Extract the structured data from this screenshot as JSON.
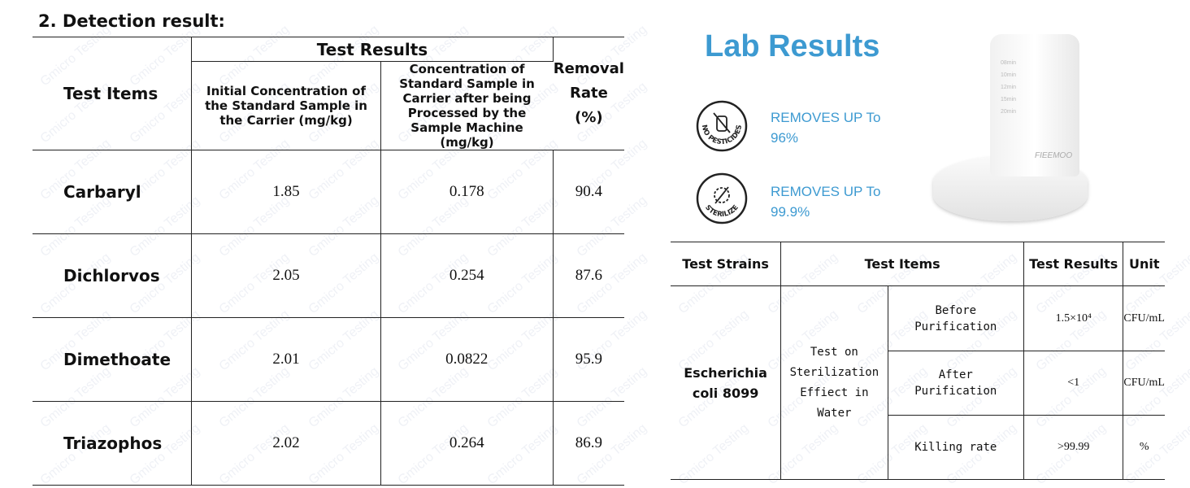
{
  "left": {
    "title": "2. Detection result:",
    "header": {
      "test_items": "Test Items",
      "test_results": "Test Results",
      "initial": "Initial Concentration of the Standard Sample in the Carrier (mg/kg)",
      "processed": "Concentration of Standard Sample in Carrier after being Processed by the Sample Machine (mg/kg)",
      "removal": "Removal Rate (%)"
    },
    "rows": [
      {
        "item": "Carbaryl",
        "initial": "1.85",
        "processed": "0.178",
        "removal": "90.4"
      },
      {
        "item": "Dichlorvos",
        "initial": "2.05",
        "processed": "0.254",
        "removal": "87.6"
      },
      {
        "item": "Dimethoate",
        "initial": "2.01",
        "processed": "0.0822",
        "removal": "95.9"
      },
      {
        "item": "Triazophos",
        "initial": "2.02",
        "processed": "0.264",
        "removal": "86.9"
      }
    ]
  },
  "watermark": "Gmicro Testing",
  "lab": {
    "title": "Lab Results",
    "claims": [
      {
        "badge": "NO PESTICIDES",
        "line1": "REMOVES UP To",
        "value": "96%"
      },
      {
        "badge": "STERILIZE",
        "line1": "REMOVES UP To",
        "value": "99.9%"
      }
    ]
  },
  "product": {
    "brand": "FIEEMOO",
    "timers": [
      "08min",
      "10min",
      "12min",
      "15min",
      "20min"
    ]
  },
  "right": {
    "header": {
      "strains": "Test Strains",
      "items": "Test Items",
      "results": "Test Results",
      "unit": "Unit"
    },
    "strain": "Escherichia coli 8099",
    "test": "Test on Sterilization Effiect in Water",
    "rows": [
      {
        "label": "Before Purification",
        "result": "1.5×10⁴",
        "unit": "CFU/mL"
      },
      {
        "label": "After Purification",
        "result": "<1",
        "unit": "CFU/mL"
      },
      {
        "label": "Killing rate",
        "result": ">99.99",
        "unit": "%"
      }
    ]
  }
}
